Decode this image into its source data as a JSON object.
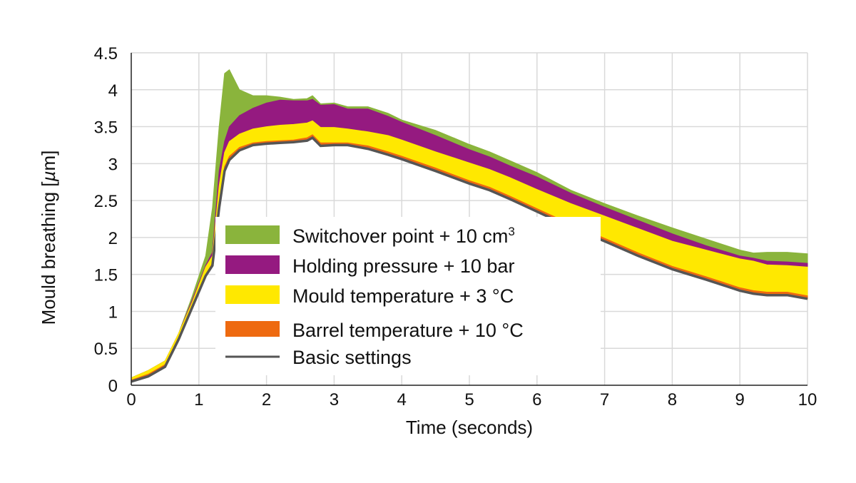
{
  "chart_data": {
    "type": "area",
    "xlabel": "Time (seconds)",
    "ylabel_main": "Mould breathing [",
    "ylabel_unit": "µ",
    "ylabel_tail": "m]",
    "xlim": [
      0,
      10
    ],
    "ylim": [
      0,
      4.5
    ],
    "x_ticks": [
      "0",
      "1",
      "2",
      "3",
      "4",
      "5",
      "6",
      "7",
      "8",
      "9",
      "10"
    ],
    "y_ticks": [
      "0",
      "0.5",
      "1",
      "1.5",
      "2",
      "2.5",
      "3",
      "3.5",
      "4",
      "4.5"
    ],
    "grid": true,
    "legend_placement": "center-left",
    "legend": [
      {
        "key": "switchover",
        "label": "Switchover point + 10 cm",
        "sup": "3"
      },
      {
        "key": "holding",
        "label": "Holding pressure + 10 bar",
        "sup": ""
      },
      {
        "key": "mould",
        "label": "Mould temperature + 3 °C",
        "sup": ""
      },
      {
        "key": "barrel",
        "label": "Barrel temperature + 10 °C",
        "sup": ""
      },
      {
        "key": "basic",
        "label": "Basic settings",
        "sup": ""
      }
    ],
    "colors": {
      "switchover": "#8ab43c",
      "holding": "#951a80",
      "mould": "#ffe800",
      "barrel": "#ee6a10",
      "basic": "#555555"
    },
    "x": [
      0,
      0.25,
      0.5,
      0.7,
      0.9,
      1.1,
      1.2,
      1.3,
      1.38,
      1.45,
      1.6,
      1.8,
      2.0,
      2.2,
      2.4,
      2.6,
      2.68,
      2.8,
      3.0,
      3.2,
      3.5,
      3.8,
      4.0,
      4.5,
      5.0,
      5.3,
      5.6,
      6.0,
      6.5,
      7.0,
      7.5,
      8.0,
      8.5,
      9.0,
      9.2,
      9.4,
      9.7,
      10.0
    ],
    "series": [
      {
        "key": "basic",
        "values": [
          0.05,
          0.12,
          0.25,
          0.62,
          1.05,
          1.48,
          1.62,
          2.4,
          2.9,
          3.05,
          3.18,
          3.25,
          3.27,
          3.28,
          3.29,
          3.31,
          3.35,
          3.24,
          3.25,
          3.25,
          3.2,
          3.12,
          3.06,
          2.9,
          2.73,
          2.64,
          2.52,
          2.35,
          2.14,
          1.95,
          1.75,
          1.57,
          1.43,
          1.28,
          1.24,
          1.22,
          1.22,
          1.17
        ]
      },
      {
        "key": "barrel",
        "values": [
          0.07,
          0.15,
          0.28,
          0.65,
          1.08,
          1.5,
          1.65,
          2.45,
          2.96,
          3.1,
          3.22,
          3.28,
          3.3,
          3.31,
          3.32,
          3.35,
          3.39,
          3.28,
          3.28,
          3.28,
          3.24,
          3.16,
          3.1,
          2.94,
          2.77,
          2.68,
          2.56,
          2.39,
          2.18,
          1.99,
          1.79,
          1.61,
          1.47,
          1.32,
          1.28,
          1.26,
          1.26,
          1.21
        ]
      },
      {
        "key": "mould",
        "values": [
          0.1,
          0.2,
          0.33,
          0.7,
          1.12,
          1.6,
          1.75,
          2.7,
          3.15,
          3.3,
          3.4,
          3.47,
          3.5,
          3.52,
          3.53,
          3.55,
          3.58,
          3.49,
          3.49,
          3.47,
          3.43,
          3.38,
          3.32,
          3.16,
          3.01,
          2.92,
          2.81,
          2.65,
          2.46,
          2.29,
          2.12,
          1.95,
          1.83,
          1.71,
          1.68,
          1.63,
          1.62,
          1.6
        ]
      },
      {
        "key": "holding",
        "values": [
          0.1,
          0.2,
          0.33,
          0.7,
          1.15,
          1.62,
          1.8,
          2.9,
          3.3,
          3.5,
          3.65,
          3.75,
          3.82,
          3.86,
          3.85,
          3.85,
          3.87,
          3.79,
          3.8,
          3.74,
          3.74,
          3.64,
          3.56,
          3.38,
          3.19,
          3.09,
          2.97,
          2.82,
          2.6,
          2.41,
          2.23,
          2.05,
          1.89,
          1.75,
          1.72,
          1.68,
          1.67,
          1.65
        ]
      },
      {
        "key": "switchover",
        "values": [
          0.1,
          0.2,
          0.33,
          0.7,
          1.2,
          1.75,
          2.4,
          3.5,
          4.22,
          4.27,
          4.0,
          3.92,
          3.92,
          3.9,
          3.87,
          3.88,
          3.92,
          3.81,
          3.82,
          3.77,
          3.77,
          3.68,
          3.59,
          3.45,
          3.26,
          3.16,
          3.04,
          2.88,
          2.64,
          2.46,
          2.29,
          2.13,
          1.98,
          1.83,
          1.79,
          1.8,
          1.8,
          1.78
        ]
      }
    ]
  }
}
